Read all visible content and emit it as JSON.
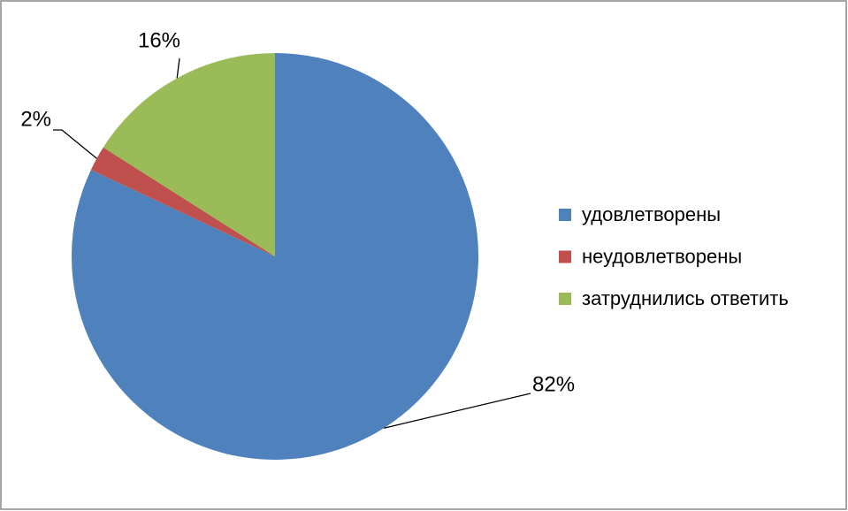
{
  "chart_data": {
    "type": "pie",
    "categories": [
      "удовлетворены",
      "неудовлетворены",
      "затруднились ответить"
    ],
    "values": [
      82,
      2,
      16
    ],
    "value_labels": [
      "82%",
      "2%",
      "16%"
    ],
    "colors": [
      "#4f81bd",
      "#c0504d",
      "#9bbb59"
    ],
    "legend": "right"
  }
}
